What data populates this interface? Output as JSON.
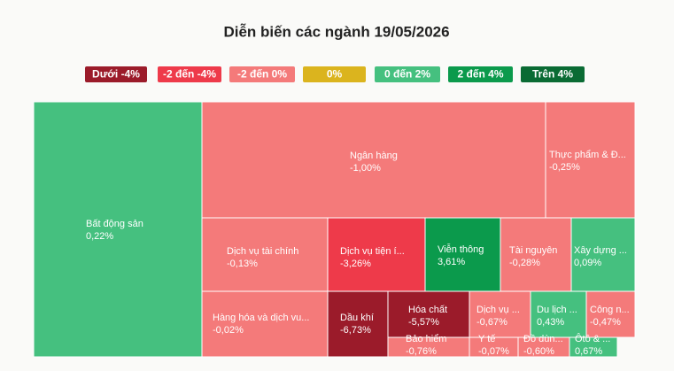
{
  "chart_data": {
    "type": "treemap",
    "title": "Diễn biến các ngành 19/05/2026",
    "legend": [
      {
        "label": "Dưới -4%",
        "color": "#9b1b2a"
      },
      {
        "label": "-2 đến -4%",
        "color": "#ee3a4a"
      },
      {
        "label": "-2 đến 0%",
        "color": "#f47a7a"
      },
      {
        "label": "0%",
        "color": "#dbb41e"
      },
      {
        "label": "0 đến 2%",
        "color": "#45c07f"
      },
      {
        "label": "2 đến 4%",
        "color": "#0b9a4c"
      },
      {
        "label": "Trên 4%",
        "color": "#0a6b34"
      }
    ],
    "items": [
      {
        "name": "Bất động sản",
        "value": 0.22,
        "value_label": "0,22%",
        "color": "#45c07f"
      },
      {
        "name": "Ngân hàng",
        "value": -1.0,
        "value_label": "-1,00%",
        "color": "#f47a7a"
      },
      {
        "name": "Thực phẩm & Đ...",
        "value": -0.25,
        "value_label": "-0,25%",
        "color": "#f47a7a"
      },
      {
        "name": "Dịch vụ tài chính",
        "value": -0.13,
        "value_label": "-0,13%",
        "color": "#f47a7a"
      },
      {
        "name": "Dịch vụ tiện í...",
        "value": -3.26,
        "value_label": "-3,26%",
        "color": "#ee3a4a"
      },
      {
        "name": "Viễn thông",
        "value": 3.61,
        "value_label": "3,61%",
        "color": "#0b9a4c"
      },
      {
        "name": "Tài nguyên",
        "value": -0.28,
        "value_label": "-0,28%",
        "color": "#f47a7a"
      },
      {
        "name": "Xây dựng ...",
        "value": 0.09,
        "value_label": "0,09%",
        "color": "#45c07f"
      },
      {
        "name": "Hàng hóa và dịch vu...",
        "value": -0.02,
        "value_label": "-0,02%",
        "color": "#f47a7a"
      },
      {
        "name": "Dầu khí",
        "value": -6.73,
        "value_label": "-6,73%",
        "color": "#9b1b2a"
      },
      {
        "name": "Hóa chất",
        "value": -5.57,
        "value_label": "-5,57%",
        "color": "#9b1b2a"
      },
      {
        "name": "Bảo hiểm",
        "value": -0.76,
        "value_label": "-0,76%",
        "color": "#f47a7a"
      },
      {
        "name": "Dịch vụ ...",
        "value": -0.67,
        "value_label": "-0,67%",
        "color": "#f47a7a"
      },
      {
        "name": "Y tế",
        "value": -0.07,
        "value_label": "-0,07%",
        "color": "#f47a7a"
      },
      {
        "name": "Du lịch ...",
        "value": 0.43,
        "value_label": "0,43%",
        "color": "#45c07f"
      },
      {
        "name": "Công n...",
        "value": -0.47,
        "value_label": "-0,47%",
        "color": "#f47a7a"
      },
      {
        "name": "Đồ dùn...",
        "value": -0.6,
        "value_label": "-0,60%",
        "color": "#f47a7a"
      },
      {
        "name": "Ôtô & ...",
        "value": 0.67,
        "value_label": "0,67%",
        "color": "#45c07f"
      }
    ]
  }
}
